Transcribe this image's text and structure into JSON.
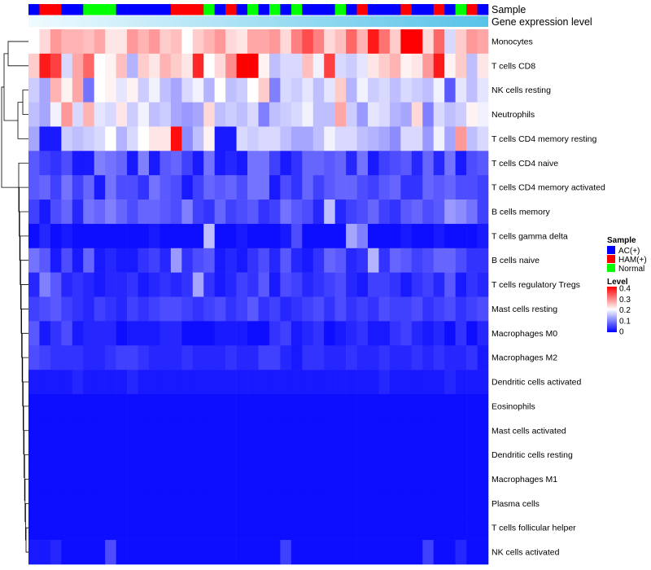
{
  "chart_data": {
    "type": "heatmap",
    "title": "",
    "annotation_labels": [
      "Sample",
      "Gene expression level"
    ],
    "rows": [
      "Monocytes",
      "T cells CD8",
      "NK cells resting",
      "Neutrophils",
      "T cells CD4 memory resting",
      "T cells CD4 naive",
      "T cells CD4 memory activated",
      "B cells memory",
      "T cells gamma delta",
      "B cells naive",
      "T cells regulatory  Tregs",
      "Mast cells resting",
      "Macrophages M0",
      "Macrophages M2",
      "Dendritic cells activated",
      "Eosinophils",
      "Mast cells activated",
      "Dendritic cells resting",
      "Macrophages M1",
      "Plasma cells",
      "T cells follicular helper",
      "NK cells activated"
    ],
    "sample_groups": [
      "AC",
      "HAM",
      "HAM",
      "AC",
      "AC",
      "Normal",
      "Normal",
      "Normal",
      "AC",
      "AC",
      "AC",
      "AC",
      "AC",
      "HAM",
      "HAM",
      "HAM",
      "Normal",
      "AC",
      "HAM",
      "AC",
      "Normal",
      "AC",
      "Normal",
      "AC",
      "Normal",
      "AC",
      "AC",
      "AC",
      "Normal",
      "AC",
      "HAM",
      "AC",
      "AC",
      "AC",
      "HAM",
      "AC",
      "AC",
      "HAM",
      "AC",
      "Normal",
      "HAM",
      "AC"
    ],
    "values": [
      [
        0.2,
        0.23,
        0.28,
        0.26,
        0.26,
        0.25,
        0.27,
        0.22,
        0.22,
        0.28,
        0.26,
        0.28,
        0.24,
        0.25,
        0.2,
        0.24,
        0.26,
        0.28,
        0.23,
        0.22,
        0.27,
        0.27,
        0.28,
        0.23,
        0.3,
        0.34,
        0.3,
        0.23,
        0.25,
        0.32,
        0.26,
        0.38,
        0.31,
        0.24,
        0.4,
        0.4,
        0.23,
        0.32,
        0.17,
        0.24,
        0.28,
        0.27
      ],
      [
        0.24,
        0.38,
        0.35,
        0.17,
        0.27,
        0.32,
        0.2,
        0.21,
        0.25,
        0.14,
        0.24,
        0.22,
        0.26,
        0.24,
        0.22,
        0.37,
        0.2,
        0.23,
        0.29,
        0.4,
        0.4,
        0.21,
        0.15,
        0.17,
        0.17,
        0.25,
        0.19,
        0.35,
        0.17,
        0.16,
        0.18,
        0.22,
        0.24,
        0.26,
        0.21,
        0.22,
        0.28,
        0.38,
        0.21,
        0.24,
        0.15,
        0.22
      ],
      [
        0.16,
        0.13,
        0.26,
        0.21,
        0.27,
        0.09,
        0.2,
        0.21,
        0.18,
        0.21,
        0.16,
        0.19,
        0.15,
        0.13,
        0.17,
        0.19,
        0.14,
        0.2,
        0.15,
        0.16,
        0.2,
        0.24,
        0.1,
        0.17,
        0.16,
        0.18,
        0.15,
        0.18,
        0.24,
        0.14,
        0.19,
        0.16,
        0.17,
        0.15,
        0.17,
        0.16,
        0.15,
        0.19,
        0.07,
        0.18,
        0.15,
        0.18
      ],
      [
        0.15,
        0.13,
        0.19,
        0.28,
        0.17,
        0.26,
        0.18,
        0.17,
        0.22,
        0.16,
        0.19,
        0.15,
        0.16,
        0.13,
        0.12,
        0.13,
        0.23,
        0.15,
        0.16,
        0.15,
        0.17,
        0.1,
        0.15,
        0.16,
        0.17,
        0.19,
        0.15,
        0.15,
        0.27,
        0.16,
        0.12,
        0.18,
        0.17,
        0.14,
        0.13,
        0.23,
        0.1,
        0.17,
        0.15,
        0.16,
        0.21,
        0.19
      ],
      [
        0.13,
        0.02,
        0.02,
        0.16,
        0.15,
        0.16,
        0.17,
        0.2,
        0.14,
        0.17,
        0.2,
        0.22,
        0.22,
        0.39,
        0.11,
        0.15,
        0.21,
        0.02,
        0.02,
        0.17,
        0.16,
        0.17,
        0.17,
        0.15,
        0.13,
        0.13,
        0.15,
        0.19,
        0.17,
        0.17,
        0.15,
        0.14,
        0.13,
        0.11,
        0.17,
        0.17,
        0.12,
        0.19,
        0.13,
        0.28,
        0.15,
        0.17
      ],
      [
        0.07,
        0.05,
        0.04,
        0.06,
        0.02,
        0.02,
        0.1,
        0.09,
        0.08,
        0.02,
        0.1,
        0.02,
        0.07,
        0.08,
        0.05,
        0.02,
        0.09,
        0.02,
        0.03,
        0.02,
        0.09,
        0.09,
        0.05,
        0.02,
        0.04,
        0.08,
        0.08,
        0.07,
        0.08,
        0.03,
        0.09,
        0.02,
        0.05,
        0.06,
        0.07,
        0.03,
        0.08,
        0.03,
        0.09,
        0.02,
        0.06,
        0.07
      ],
      [
        0.07,
        0.08,
        0.05,
        0.09,
        0.05,
        0.08,
        0.02,
        0.09,
        0.06,
        0.06,
        0.04,
        0.09,
        0.07,
        0.06,
        0.02,
        0.05,
        0.08,
        0.07,
        0.08,
        0.06,
        0.09,
        0.09,
        0.02,
        0.06,
        0.04,
        0.08,
        0.05,
        0.07,
        0.08,
        0.08,
        0.06,
        0.05,
        0.07,
        0.08,
        0.04,
        0.04,
        0.08,
        0.07,
        0.08,
        0.06,
        0.06,
        0.05
      ],
      [
        0.05,
        0.02,
        0.06,
        0.08,
        0.03,
        0.09,
        0.08,
        0.1,
        0.08,
        0.06,
        0.08,
        0.08,
        0.07,
        0.06,
        0.1,
        0.05,
        0.04,
        0.08,
        0.05,
        0.06,
        0.07,
        0.04,
        0.05,
        0.09,
        0.07,
        0.06,
        0.03,
        0.15,
        0.03,
        0.05,
        0.06,
        0.08,
        0.05,
        0.04,
        0.07,
        0.08,
        0.06,
        0.07,
        0.12,
        0.11,
        0.09,
        0.05
      ],
      [
        0.01,
        0.03,
        0.01,
        0.02,
        0.01,
        0.01,
        0.01,
        0.01,
        0.01,
        0.01,
        0.01,
        0.02,
        0.01,
        0.01,
        0.01,
        0.01,
        0.15,
        0.01,
        0.01,
        0.02,
        0.01,
        0.01,
        0.01,
        0.02,
        0.06,
        0.01,
        0.01,
        0.01,
        0.01,
        0.13,
        0.1,
        0.01,
        0.01,
        0.01,
        0.02,
        0.01,
        0.01,
        0.02,
        0.01,
        0.01,
        0.01,
        0.02
      ],
      [
        0.09,
        0.07,
        0.02,
        0.06,
        0.02,
        0.08,
        0.02,
        0.03,
        0.02,
        0.02,
        0.04,
        0.05,
        0.03,
        0.12,
        0.04,
        0.06,
        0.07,
        0.02,
        0.03,
        0.02,
        0.04,
        0.06,
        0.03,
        0.07,
        0.03,
        0.02,
        0.04,
        0.08,
        0.07,
        0.03,
        0.04,
        0.14,
        0.04,
        0.08,
        0.07,
        0.05,
        0.06,
        0.08,
        0.08,
        0.06,
        0.04,
        0.04
      ],
      [
        0.03,
        0.1,
        0.07,
        0.03,
        0.04,
        0.03,
        0.02,
        0.03,
        0.03,
        0.04,
        0.02,
        0.03,
        0.04,
        0.03,
        0.04,
        0.13,
        0.04,
        0.02,
        0.03,
        0.05,
        0.04,
        0.07,
        0.02,
        0.06,
        0.05,
        0.03,
        0.04,
        0.05,
        0.06,
        0.03,
        0.02,
        0.05,
        0.05,
        0.04,
        0.02,
        0.04,
        0.05,
        0.03,
        0.07,
        0.02,
        0.04,
        0.03
      ],
      [
        0.05,
        0.06,
        0.07,
        0.05,
        0.04,
        0.03,
        0.05,
        0.04,
        0.03,
        0.05,
        0.04,
        0.05,
        0.06,
        0.06,
        0.05,
        0.04,
        0.05,
        0.06,
        0.04,
        0.05,
        0.07,
        0.04,
        0.05,
        0.03,
        0.04,
        0.05,
        0.06,
        0.04,
        0.06,
        0.04,
        0.05,
        0.04,
        0.06,
        0.05,
        0.05,
        0.06,
        0.04,
        0.05,
        0.06,
        0.04,
        0.05,
        0.06
      ],
      [
        0.07,
        0.02,
        0.04,
        0.06,
        0.02,
        0.03,
        0.03,
        0.03,
        0.01,
        0.02,
        0.02,
        0.02,
        0.03,
        0.03,
        0.01,
        0.01,
        0.01,
        0.02,
        0.02,
        0.02,
        0.01,
        0.01,
        0.04,
        0.05,
        0.02,
        0.03,
        0.04,
        0.01,
        0.02,
        0.03,
        0.04,
        0.02,
        0.02,
        0.04,
        0.05,
        0.03,
        0.02,
        0.03,
        0.01,
        0.04,
        0.01,
        0.03
      ],
      [
        0.06,
        0.05,
        0.04,
        0.04,
        0.04,
        0.03,
        0.03,
        0.04,
        0.05,
        0.05,
        0.04,
        0.03,
        0.03,
        0.03,
        0.04,
        0.03,
        0.03,
        0.03,
        0.04,
        0.03,
        0.03,
        0.05,
        0.05,
        0.03,
        0.02,
        0.04,
        0.04,
        0.03,
        0.03,
        0.04,
        0.03,
        0.03,
        0.04,
        0.03,
        0.03,
        0.04,
        0.03,
        0.04,
        0.03,
        0.03,
        0.04,
        0.02
      ],
      [
        0.02,
        0.02,
        0.02,
        0.02,
        0.03,
        0.02,
        0.02,
        0.02,
        0.02,
        0.03,
        0.02,
        0.02,
        0.02,
        0.02,
        0.02,
        0.02,
        0.02,
        0.02,
        0.02,
        0.02,
        0.02,
        0.02,
        0.02,
        0.02,
        0.02,
        0.02,
        0.02,
        0.02,
        0.02,
        0.02,
        0.02,
        0.02,
        0.03,
        0.02,
        0.02,
        0.02,
        0.02,
        0.02,
        0.03,
        0.02,
        0.02,
        0.02
      ],
      [
        0.01,
        0.01,
        0.01,
        0.01,
        0.01,
        0.01,
        0.01,
        0.01,
        0.01,
        0.01,
        0.01,
        0.01,
        0.01,
        0.01,
        0.01,
        0.01,
        0.01,
        0.01,
        0.01,
        0.01,
        0.01,
        0.01,
        0.01,
        0.01,
        0.01,
        0.01,
        0.01,
        0.01,
        0.01,
        0.01,
        0.01,
        0.01,
        0.01,
        0.01,
        0.01,
        0.01,
        0.01,
        0.01,
        0.01,
        0.01,
        0.01,
        0.01
      ],
      [
        0.01,
        0.01,
        0.01,
        0.01,
        0.01,
        0.01,
        0.01,
        0.01,
        0.01,
        0.01,
        0.01,
        0.01,
        0.01,
        0.01,
        0.01,
        0.01,
        0.01,
        0.01,
        0.01,
        0.01,
        0.01,
        0.01,
        0.01,
        0.01,
        0.01,
        0.01,
        0.01,
        0.01,
        0.01,
        0.01,
        0.01,
        0.01,
        0.01,
        0.01,
        0.01,
        0.01,
        0.01,
        0.01,
        0.01,
        0.01,
        0.01,
        0.01
      ],
      [
        0.01,
        0.01,
        0.01,
        0.01,
        0.01,
        0.01,
        0.01,
        0.01,
        0.01,
        0.01,
        0.01,
        0.01,
        0.01,
        0.01,
        0.01,
        0.01,
        0.01,
        0.01,
        0.01,
        0.01,
        0.01,
        0.01,
        0.01,
        0.01,
        0.01,
        0.01,
        0.01,
        0.01,
        0.01,
        0.01,
        0.01,
        0.01,
        0.01,
        0.01,
        0.01,
        0.01,
        0.01,
        0.01,
        0.01,
        0.01,
        0.01,
        0.01
      ],
      [
        0.01,
        0.01,
        0.01,
        0.01,
        0.01,
        0.01,
        0.01,
        0.01,
        0.01,
        0.01,
        0.01,
        0.01,
        0.01,
        0.01,
        0.01,
        0.01,
        0.01,
        0.01,
        0.01,
        0.01,
        0.01,
        0.01,
        0.01,
        0.01,
        0.01,
        0.01,
        0.01,
        0.01,
        0.01,
        0.01,
        0.01,
        0.01,
        0.01,
        0.01,
        0.01,
        0.01,
        0.01,
        0.01,
        0.01,
        0.01,
        0.01,
        0.01
      ],
      [
        0.01,
        0.01,
        0.01,
        0.01,
        0.01,
        0.01,
        0.01,
        0.01,
        0.01,
        0.01,
        0.01,
        0.01,
        0.01,
        0.01,
        0.01,
        0.01,
        0.01,
        0.01,
        0.01,
        0.01,
        0.01,
        0.01,
        0.01,
        0.01,
        0.01,
        0.01,
        0.01,
        0.01,
        0.01,
        0.01,
        0.01,
        0.01,
        0.01,
        0.01,
        0.01,
        0.01,
        0.01,
        0.01,
        0.01,
        0.01,
        0.01,
        0.01
      ],
      [
        0.01,
        0.01,
        0.01,
        0.01,
        0.01,
        0.01,
        0.01,
        0.01,
        0.01,
        0.01,
        0.01,
        0.01,
        0.01,
        0.01,
        0.01,
        0.01,
        0.01,
        0.01,
        0.01,
        0.01,
        0.01,
        0.01,
        0.01,
        0.01,
        0.01,
        0.01,
        0.01,
        0.01,
        0.01,
        0.01,
        0.01,
        0.01,
        0.01,
        0.01,
        0.01,
        0.01,
        0.01,
        0.01,
        0.01,
        0.01,
        0.01,
        0.01
      ],
      [
        0.02,
        0.02,
        0.03,
        0.01,
        0.01,
        0.01,
        0.01,
        0.06,
        0.01,
        0.01,
        0.01,
        0.01,
        0.01,
        0.01,
        0.01,
        0.01,
        0.01,
        0.01,
        0.01,
        0.01,
        0.01,
        0.01,
        0.01,
        0.05,
        0.01,
        0.01,
        0.01,
        0.01,
        0.01,
        0.01,
        0.01,
        0.01,
        0.01,
        0.01,
        0.01,
        0.01,
        0.05,
        0.01,
        0.01,
        0.03,
        0.01,
        0.01
      ]
    ],
    "color_scale": {
      "min": 0,
      "mid": 0.2,
      "max": 0.4,
      "colors": [
        "#0000ff",
        "#ffffff",
        "#ff0000"
      ]
    },
    "legend": {
      "sample_title": "Sample",
      "sample_items": [
        {
          "key": "AC",
          "label": "AC(+)",
          "color": "#0000ff"
        },
        {
          "key": "HAM",
          "label": "HAM(+)",
          "color": "#ff0000"
        },
        {
          "key": "Normal",
          "label": "Normal",
          "color": "#00ff00"
        }
      ],
      "level_title": "Level",
      "level_ticks": [
        "0.4",
        "0.3",
        "0.2",
        "0.1",
        "0"
      ],
      "position": "right"
    }
  }
}
